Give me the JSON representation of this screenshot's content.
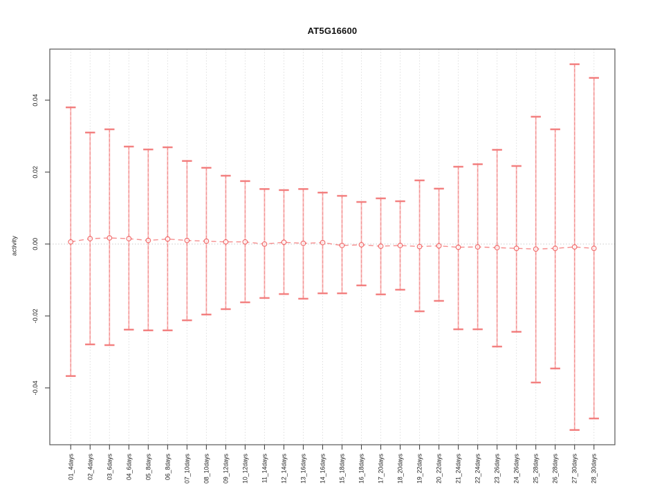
{
  "figure": {
    "title": "AT5G16600",
    "y_axis_label": "activity"
  },
  "chart_data": {
    "type": "line",
    "subtype": "points-with-error-bars",
    "title": "AT5G16600",
    "xlabel": "",
    "ylabel": "activity",
    "legend": "none",
    "categories": [
      "01_4days",
      "02_4days",
      "03_6days",
      "04_6days",
      "05_8days",
      "06_8days",
      "07_10days",
      "08_10days",
      "09_12days",
      "10_12days",
      "11_14days",
      "12_14days",
      "13_16days",
      "14_16days",
      "15_18days",
      "16_18days",
      "17_20days",
      "18_20days",
      "19_22days",
      "20_22days",
      "21_24days",
      "22_24days",
      "23_26days",
      "24_26days",
      "25_28days",
      "26_28days",
      "27_30days",
      "28_30days"
    ],
    "series": [
      {
        "name": "activity",
        "centers": [
          0.0006,
          0.0015,
          0.0017,
          0.0015,
          0.001,
          0.0014,
          0.001,
          0.0008,
          0.0006,
          0.0006,
          0.0,
          0.0005,
          0.0002,
          0.0004,
          -0.0004,
          -0.0002,
          -0.0006,
          -0.0004,
          -0.0007,
          -0.0005,
          -0.0009,
          -0.0008,
          -0.001,
          -0.0012,
          -0.0014,
          -0.0012,
          -0.0008,
          -0.0012
        ],
        "upper": [
          0.038,
          0.031,
          0.0319,
          0.0271,
          0.0263,
          0.0269,
          0.0231,
          0.0212,
          0.019,
          0.0175,
          0.0153,
          0.015,
          0.0153,
          0.0143,
          0.0134,
          0.0117,
          0.0127,
          0.0119,
          0.0177,
          0.0154,
          0.0215,
          0.0222,
          0.0262,
          0.0217,
          0.0354,
          0.0319,
          0.05,
          0.0462
        ],
        "lower": [
          -0.0367,
          -0.0279,
          -0.0281,
          -0.0238,
          -0.024,
          -0.024,
          -0.0212,
          -0.0196,
          -0.0181,
          -0.0162,
          -0.015,
          -0.0139,
          -0.0152,
          -0.0137,
          -0.0137,
          -0.0115,
          -0.014,
          -0.0127,
          -0.0187,
          -0.0158,
          -0.0237,
          -0.0237,
          -0.0285,
          -0.0244,
          -0.0385,
          -0.0346,
          -0.0517,
          -0.0485
        ]
      }
    ],
    "yticks": [
      -0.04,
      -0.02,
      0.0,
      0.02,
      0.04
    ],
    "ylim": [
      -0.0558,
      0.0542
    ],
    "grid": {
      "vertical_per_category": true,
      "zero_line": true,
      "style": "dotted"
    },
    "colors": {
      "error_bar_line": "#f8a0a0",
      "error_bar_dash": "#f06a6a",
      "error_bar_cap": "#f58989",
      "error_bar_cap_core": "#ef5f5f",
      "point_stroke": "#f05a5a",
      "connector": "#f47171",
      "grid": "#dddddd",
      "zero_line": "#c8c8c8",
      "frame": "#555555",
      "tick": "#444444",
      "tick_text": "#222222"
    }
  }
}
